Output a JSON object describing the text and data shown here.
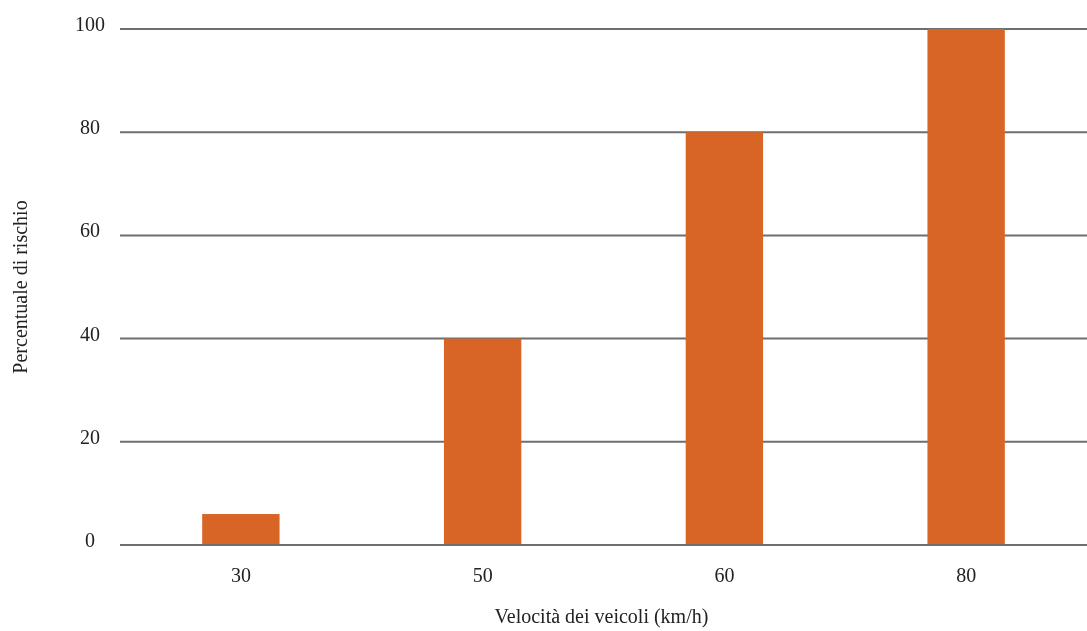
{
  "chart_data": {
    "type": "bar",
    "xlabel": "Velocità dei veicoli (km/h)",
    "ylabel": "Percentuale di rischio",
    "categories": [
      "30",
      "50",
      "60",
      "80"
    ],
    "values": [
      6,
      40,
      80,
      100
    ],
    "color": "#d86526",
    "ylim": [
      0,
      100
    ],
    "yticks": [
      0,
      20,
      40,
      60,
      80,
      100
    ],
    "grid": "y"
  }
}
